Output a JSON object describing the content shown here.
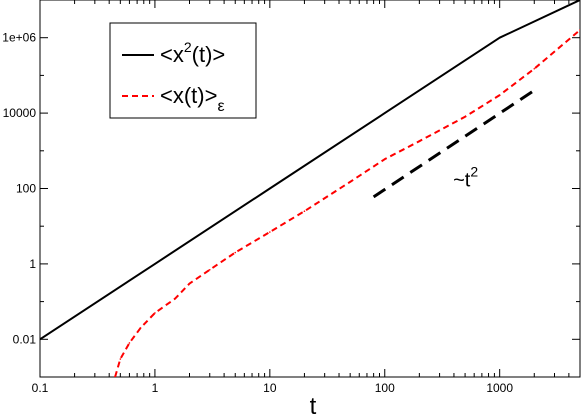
{
  "chart_data": {
    "type": "line",
    "xscale": "log",
    "yscale": "log",
    "xlim": [
      0.1,
      5000
    ],
    "ylim": [
      0.001,
      10000000
    ],
    "xlabel": "t",
    "ylabel": "",
    "grid": false,
    "legend_position": "top-left",
    "x_ticks": [
      {
        "value": 0.1,
        "label": "0.1"
      },
      {
        "value": 1,
        "label": "1"
      },
      {
        "value": 10,
        "label": "10"
      },
      {
        "value": 100,
        "label": "100"
      },
      {
        "value": 1000,
        "label": "1000"
      }
    ],
    "y_ticks": [
      {
        "value": 0.01,
        "label": "0.01"
      },
      {
        "value": 1,
        "label": "1"
      },
      {
        "value": 100,
        "label": "100"
      },
      {
        "value": 10000,
        "label": "10000"
      },
      {
        "value": 1000000,
        "label": "1e+06"
      }
    ],
    "series": [
      {
        "name": "<x²(t)>",
        "legend_parts": {
          "base": "<x",
          "sup": "2",
          "rest": "(t)>"
        },
        "color": "#000000",
        "dash": "solid",
        "points": [
          [
            0.1,
            0.01
          ],
          [
            1,
            1
          ],
          [
            10,
            100
          ],
          [
            100,
            10000
          ],
          [
            1000,
            1000000
          ],
          [
            5000,
            10000000
          ]
        ]
      },
      {
        "name": "<x(t)>ε",
        "legend_parts": {
          "base": "<x(t)>",
          "sub": "ε"
        },
        "color": "#ff0000",
        "dash": "dashed",
        "points": [
          [
            0.45,
            0.001
          ],
          [
            0.5,
            0.003
          ],
          [
            0.6,
            0.008
          ],
          [
            0.75,
            0.02
          ],
          [
            1,
            0.05
          ],
          [
            1.5,
            0.12
          ],
          [
            2,
            0.3
          ],
          [
            3,
            0.7
          ],
          [
            5,
            2
          ],
          [
            10,
            7
          ],
          [
            20,
            25
          ],
          [
            50,
            150
          ],
          [
            100,
            600
          ],
          [
            200,
            1800
          ],
          [
            500,
            8000
          ],
          [
            1000,
            30000
          ],
          [
            2000,
            150000
          ],
          [
            5000,
            1600000
          ]
        ]
      }
    ],
    "annotations": [
      {
        "text_base": "~t",
        "text_sup": "2",
        "color": "#000000",
        "dash": "long-dashed",
        "guide_line": [
          [
            80,
            60
          ],
          [
            2000,
            40000
          ]
        ],
        "text_at": [
          500,
          100
        ]
      }
    ]
  }
}
